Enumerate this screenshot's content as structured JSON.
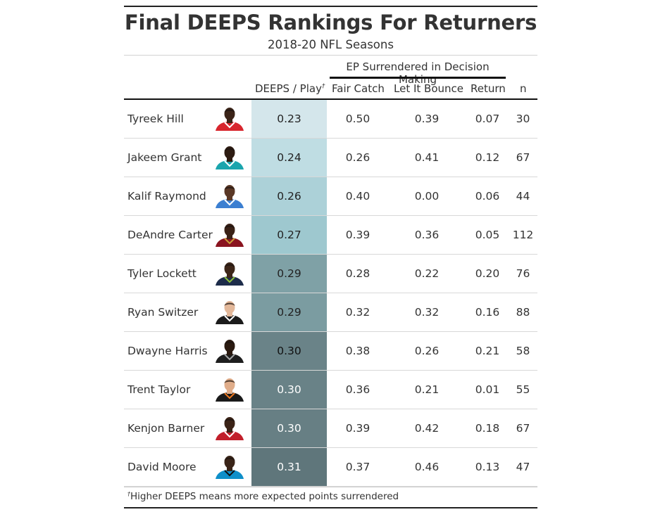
{
  "table": {
    "title": "Final DEEPS Rankings For Returners",
    "subtitle": "2018-20 NFL Seasons",
    "spanner": "EP Surrendered in Decision Making",
    "columns": {
      "deeps": "DEEPS / Play",
      "deeps_mark": "†",
      "fair_catch": "Fair Catch",
      "let_it_bounce": "Let It Bounce",
      "return": "Return",
      "n": "n"
    },
    "footnote_mark": "†",
    "footnote": "Higher DEEPS means more expected points surrendered"
  },
  "rows": [
    {
      "name": "Tyreek Hill",
      "deeps": "0.23",
      "fair_catch": "0.50",
      "let_it_bounce": "0.39",
      "return": "0.07",
      "n": "30",
      "fill": "#d4e6eb",
      "text": "#222",
      "skin": "#3b2418",
      "jersey": "#d8262e",
      "trim": "#ffffff"
    },
    {
      "name": "Jakeem Grant",
      "deeps": "0.24",
      "fair_catch": "0.26",
      "let_it_bounce": "0.41",
      "return": "0.12",
      "n": "67",
      "fill": "#bfdde3",
      "text": "#222",
      "skin": "#2e1c12",
      "jersey": "#1aa5ad",
      "trim": "#ffffff"
    },
    {
      "name": "Kalif Raymond",
      "deeps": "0.26",
      "fair_catch": "0.40",
      "let_it_bounce": "0.00",
      "return": "0.06",
      "n": "44",
      "fill": "#acd1d8",
      "text": "#222",
      "skin": "#5a3826",
      "jersey": "#3b7fd1",
      "trim": "#ffffff"
    },
    {
      "name": "DeAndre Carter",
      "deeps": "0.27",
      "fair_catch": "0.39",
      "let_it_bounce": "0.36",
      "return": "0.05",
      "n": "112",
      "fill": "#9ec8cf",
      "text": "#222",
      "skin": "#3a2116",
      "jersey": "#8a1420",
      "trim": "#c9a13a"
    },
    {
      "name": "Tyler Lockett",
      "deeps": "0.29",
      "fair_catch": "0.28",
      "let_it_bounce": "0.22",
      "return": "0.20",
      "n": "76",
      "fill": "#7fa1a6",
      "text": "#222",
      "skin": "#3d2619",
      "jersey": "#1d2c4a",
      "trim": "#8fc23b"
    },
    {
      "name": "Ryan Switzer",
      "deeps": "0.29",
      "fair_catch": "0.32",
      "let_it_bounce": "0.32",
      "return": "0.16",
      "n": "88",
      "fill": "#7b9ca1",
      "text": "#222",
      "skin": "#e3b89a",
      "jersey": "#1b1b1b",
      "trim": "#ffffff"
    },
    {
      "name": "Dwayne Harris",
      "deeps": "0.30",
      "fair_catch": "0.38",
      "let_it_bounce": "0.26",
      "return": "0.21",
      "n": "58",
      "fill": "#6a8388",
      "text": "#111",
      "skin": "#2b1a10",
      "jersey": "#1e1e1e",
      "trim": "#a7a7a7"
    },
    {
      "name": "Trent Taylor",
      "deeps": "0.30",
      "fair_catch": "0.36",
      "let_it_bounce": "0.21",
      "return": "0.01",
      "n": "55",
      "fill": "#698287",
      "text": "#ffffff",
      "skin": "#e0ad8a",
      "jersey": "#1a1a1a",
      "trim": "#f27a21"
    },
    {
      "name": "Kenjon Barner",
      "deeps": "0.30",
      "fair_catch": "0.39",
      "let_it_bounce": "0.42",
      "return": "0.18",
      "n": "67",
      "fill": "#677f84",
      "text": "#ffffff",
      "skin": "#3b2317",
      "jersey": "#c21f2b",
      "trim": "#ffffff"
    },
    {
      "name": "David Moore",
      "deeps": "0.31",
      "fair_catch": "0.37",
      "let_it_bounce": "0.46",
      "return": "0.13",
      "n": "47",
      "fill": "#5f767b",
      "text": "#ffffff",
      "skin": "#3a2418",
      "jersey": "#0f8fc9",
      "trim": "#111111"
    }
  ]
}
